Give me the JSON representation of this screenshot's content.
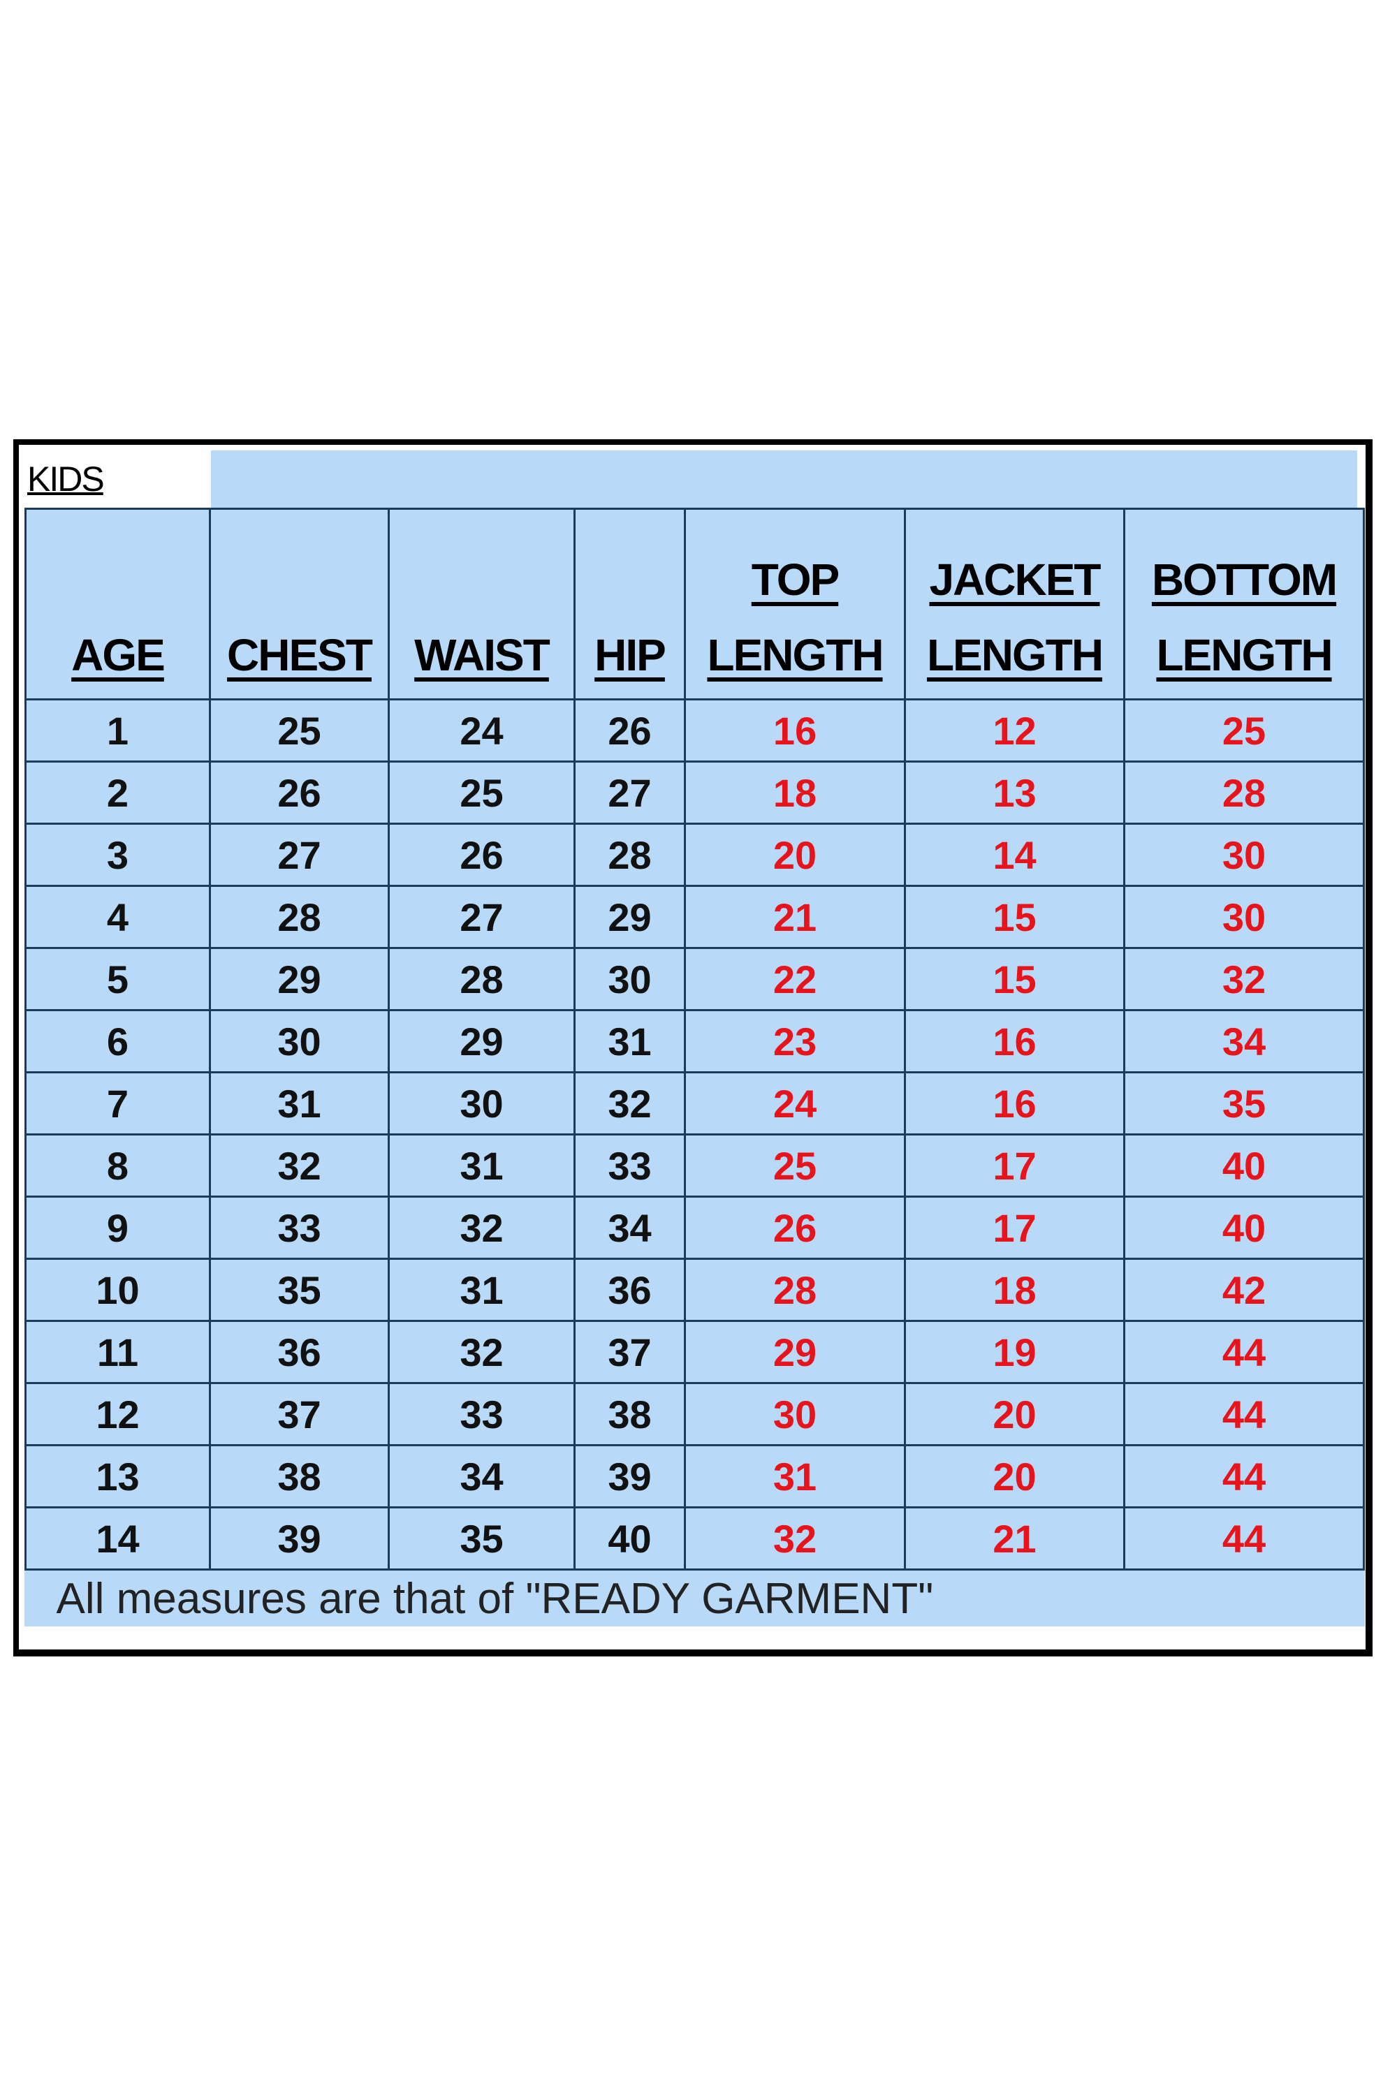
{
  "title": "KIDS",
  "headers": [
    [
      "",
      "AGE"
    ],
    [
      "",
      "CHEST"
    ],
    [
      "",
      "WAIST"
    ],
    [
      "",
      "HIP"
    ],
    [
      "TOP",
      "LENGTH"
    ],
    [
      "JACKET",
      "LENGTH"
    ],
    [
      "BOTTOM",
      "LENGTH"
    ]
  ],
  "rows": [
    [
      "1",
      "25",
      "24",
      "26",
      "16",
      "12",
      "25"
    ],
    [
      "2",
      "26",
      "25",
      "27",
      "18",
      "13",
      "28"
    ],
    [
      "3",
      "27",
      "26",
      "28",
      "20",
      "14",
      "30"
    ],
    [
      "4",
      "28",
      "27",
      "29",
      "21",
      "15",
      "30"
    ],
    [
      "5",
      "29",
      "28",
      "30",
      "22",
      "15",
      "32"
    ],
    [
      "6",
      "30",
      "29",
      "31",
      "23",
      "16",
      "34"
    ],
    [
      "7",
      "31",
      "30",
      "32",
      "24",
      "16",
      "35"
    ],
    [
      "8",
      "32",
      "31",
      "33",
      "25",
      "17",
      "40"
    ],
    [
      "9",
      "33",
      "32",
      "34",
      "26",
      "17",
      "40"
    ],
    [
      "10",
      "35",
      "31",
      "36",
      "28",
      "18",
      "42"
    ],
    [
      "11",
      "36",
      "32",
      "37",
      "29",
      "19",
      "44"
    ],
    [
      "12",
      "37",
      "33",
      "38",
      "30",
      "20",
      "44"
    ],
    [
      "13",
      "38",
      "34",
      "39",
      "31",
      "20",
      "44"
    ],
    [
      "14",
      "39",
      "35",
      "40",
      "32",
      "21",
      "44"
    ]
  ],
  "footer": "All  measures are that of \"READY GARMENT\"",
  "colors": {
    "background": "#b8daf8",
    "length_values": "#e8141c",
    "grid": "#1b3a5c"
  }
}
